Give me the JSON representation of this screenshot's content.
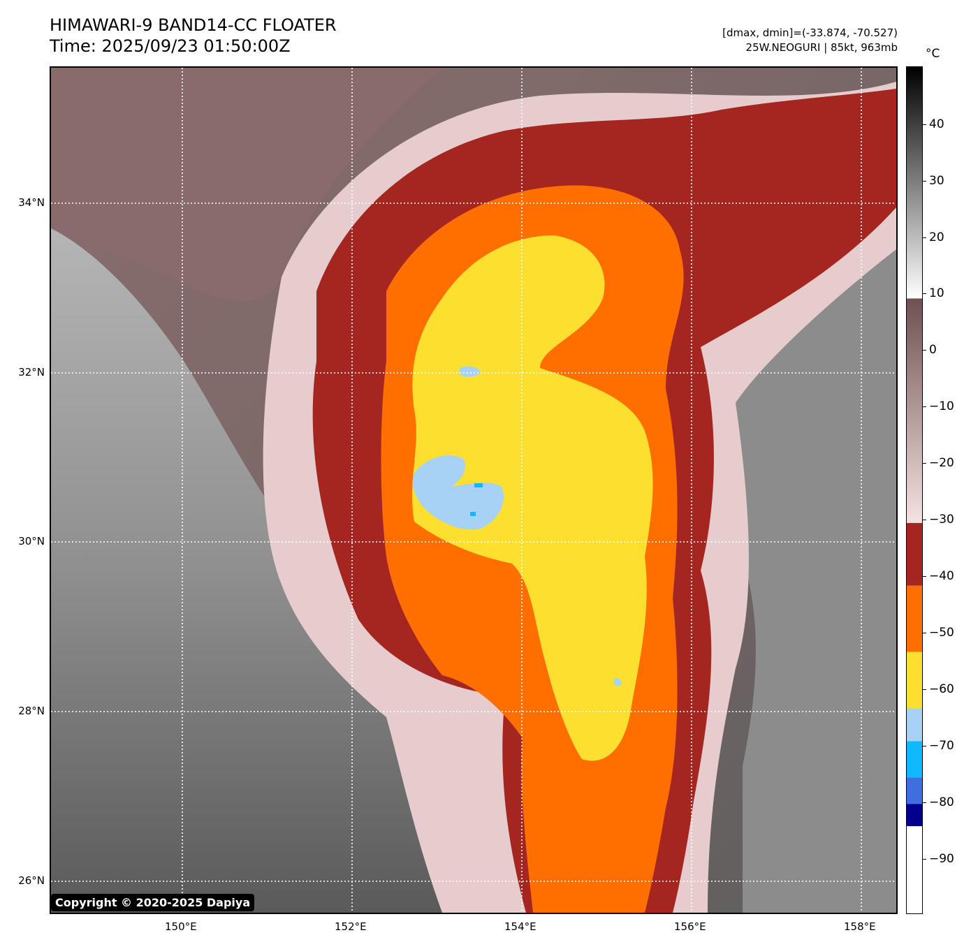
{
  "header": {
    "title": "HIMAWARI-9 BAND14-CC FLOATER",
    "time": "Time: 2025/09/23 01:50:00Z",
    "range_info": "[dmax, dmin]=(-33.874, -70.527)",
    "storm_info": "25W.NEOGURI | 85kt, 963mb"
  },
  "map": {
    "longitude_labels": [
      "150°E",
      "152°E",
      "154°E",
      "156°E",
      "158°E"
    ],
    "latitude_labels": [
      "34°N",
      "32°N",
      "30°N",
      "28°N",
      "26°N"
    ],
    "gridlines": "dotted white",
    "colors": {
      "warm_land_brown": "#8a6a6a",
      "clear_gray": "#6b6b6b",
      "pink": "#e8cfcf",
      "dark_red": "#a52521",
      "orange": "#ff6f00",
      "yellow": "#fde02f",
      "light_blue": "#a7d2f6",
      "cyan": "#10b8ff"
    }
  },
  "copyright": "Copyright © 2020-2025 Dapiya",
  "colorbar": {
    "unit": "°C",
    "labels": [
      "40",
      "30",
      "20",
      "10",
      "0",
      "−10",
      "−20",
      "−30",
      "−40",
      "−50",
      "−60",
      "−70",
      "−80",
      "−90"
    ]
  }
}
